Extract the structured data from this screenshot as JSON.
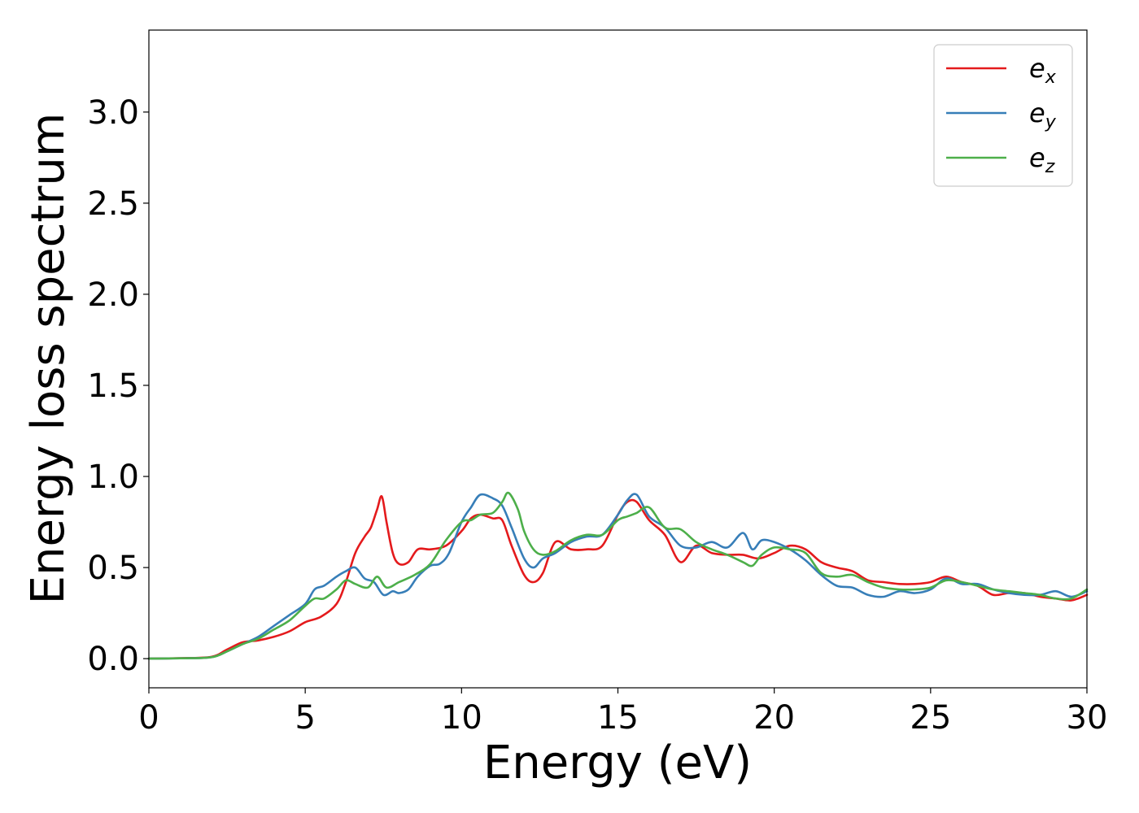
{
  "chart_data": {
    "type": "line",
    "xlabel": "Energy (eV)",
    "ylabel": "Energy loss spectrum",
    "xlim": [
      0,
      30
    ],
    "ylim": [
      -0.16,
      3.45
    ],
    "xticks": [
      0,
      5,
      10,
      15,
      20,
      25,
      30
    ],
    "xtick_labels": [
      "0",
      "5",
      "10",
      "15",
      "20",
      "25",
      "30"
    ],
    "yticks": [
      0.0,
      0.5,
      1.0,
      1.5,
      2.0,
      2.5,
      3.0
    ],
    "ytick_labels": [
      "0.0",
      "0.5",
      "1.0",
      "1.5",
      "2.0",
      "2.5",
      "3.0"
    ],
    "grid": false,
    "legend_position": "top-right",
    "series": [
      {
        "name": "e_x",
        "legend_base": "e",
        "legend_sub": "x",
        "color": "#e41a1c",
        "x": [
          0,
          1,
          2,
          2.5,
          3,
          3.5,
          4,
          4.5,
          5,
          5.5,
          6,
          6.3,
          6.6,
          6.9,
          7.1,
          7.3,
          7.45,
          7.6,
          7.8,
          8,
          8.3,
          8.6,
          9,
          9.5,
          10,
          10.3,
          10.6,
          11,
          11.3,
          11.6,
          12,
          12.3,
          12.6,
          13,
          13.5,
          14,
          14.5,
          15,
          15.3,
          15.6,
          16,
          16.5,
          17,
          17.5,
          18,
          18.5,
          19,
          19.5,
          20,
          20.5,
          21,
          21.5,
          22,
          22.5,
          23,
          23.5,
          24,
          24.5,
          25,
          25.5,
          26,
          26.5,
          27,
          27.5,
          28,
          28.5,
          29,
          29.5,
          30
        ],
        "y": [
          0,
          0.003,
          0.01,
          0.05,
          0.09,
          0.1,
          0.12,
          0.15,
          0.2,
          0.23,
          0.3,
          0.42,
          0.58,
          0.67,
          0.72,
          0.82,
          0.89,
          0.75,
          0.58,
          0.52,
          0.53,
          0.6,
          0.6,
          0.62,
          0.7,
          0.77,
          0.79,
          0.77,
          0.76,
          0.62,
          0.46,
          0.42,
          0.47,
          0.64,
          0.6,
          0.6,
          0.62,
          0.79,
          0.86,
          0.86,
          0.76,
          0.68,
          0.53,
          0.62,
          0.58,
          0.57,
          0.57,
          0.55,
          0.58,
          0.62,
          0.6,
          0.53,
          0.5,
          0.48,
          0.43,
          0.42,
          0.41,
          0.41,
          0.42,
          0.45,
          0.42,
          0.4,
          0.35,
          0.36,
          0.36,
          0.34,
          0.33,
          0.32,
          0.35
        ]
      },
      {
        "name": "e_y",
        "legend_base": "e",
        "legend_sub": "y",
        "color": "#377eb8",
        "x": [
          0,
          1,
          2,
          2.5,
          3,
          3.5,
          4,
          4.5,
          5,
          5.3,
          5.6,
          6,
          6.3,
          6.6,
          6.9,
          7.2,
          7.5,
          7.8,
          8,
          8.3,
          8.6,
          9,
          9.3,
          9.6,
          10,
          10.3,
          10.6,
          11,
          11.3,
          11.6,
          12,
          12.3,
          12.6,
          13,
          13.5,
          14,
          14.5,
          15,
          15.3,
          15.6,
          16,
          16.5,
          17,
          17.5,
          18,
          18.5,
          19,
          19.3,
          19.6,
          20,
          20.5,
          21,
          21.5,
          22,
          22.5,
          23,
          23.5,
          24,
          24.5,
          25,
          25.5,
          26,
          26.5,
          27,
          27.5,
          28,
          28.5,
          29,
          29.5,
          30
        ],
        "y": [
          0,
          0.002,
          0.008,
          0.04,
          0.08,
          0.12,
          0.18,
          0.24,
          0.3,
          0.38,
          0.4,
          0.45,
          0.48,
          0.5,
          0.44,
          0.42,
          0.35,
          0.37,
          0.36,
          0.38,
          0.45,
          0.51,
          0.52,
          0.58,
          0.75,
          0.83,
          0.9,
          0.88,
          0.84,
          0.72,
          0.55,
          0.5,
          0.55,
          0.58,
          0.64,
          0.67,
          0.68,
          0.79,
          0.87,
          0.9,
          0.78,
          0.72,
          0.62,
          0.61,
          0.64,
          0.61,
          0.69,
          0.6,
          0.65,
          0.64,
          0.6,
          0.54,
          0.46,
          0.4,
          0.39,
          0.35,
          0.34,
          0.37,
          0.36,
          0.38,
          0.44,
          0.41,
          0.41,
          0.38,
          0.36,
          0.35,
          0.35,
          0.37,
          0.34,
          0.37
        ]
      },
      {
        "name": "e_z",
        "legend_base": "e",
        "legend_sub": "z",
        "color": "#4daf4a",
        "x": [
          0,
          1,
          2,
          2.5,
          3,
          3.5,
          4,
          4.5,
          5,
          5.3,
          5.6,
          6,
          6.3,
          6.6,
          7,
          7.3,
          7.6,
          8,
          8.5,
          9,
          9.5,
          10,
          10.3,
          10.6,
          11,
          11.3,
          11.5,
          11.8,
          12,
          12.3,
          12.6,
          13,
          13.5,
          14,
          14.5,
          15,
          15.3,
          15.6,
          16,
          16.5,
          17,
          17.5,
          18,
          18.5,
          19,
          19.3,
          19.6,
          20,
          20.5,
          21,
          21.5,
          22,
          22.5,
          23,
          23.5,
          24,
          24.5,
          25,
          25.5,
          26,
          26.5,
          27,
          27.5,
          28,
          28.5,
          29,
          29.5,
          30
        ],
        "y": [
          0,
          0.002,
          0.008,
          0.04,
          0.08,
          0.11,
          0.16,
          0.21,
          0.29,
          0.33,
          0.33,
          0.38,
          0.43,
          0.41,
          0.39,
          0.45,
          0.39,
          0.42,
          0.46,
          0.52,
          0.65,
          0.75,
          0.76,
          0.79,
          0.8,
          0.86,
          0.91,
          0.82,
          0.7,
          0.6,
          0.57,
          0.59,
          0.65,
          0.68,
          0.68,
          0.76,
          0.78,
          0.8,
          0.83,
          0.72,
          0.71,
          0.64,
          0.6,
          0.57,
          0.53,
          0.51,
          0.57,
          0.61,
          0.6,
          0.58,
          0.47,
          0.45,
          0.46,
          0.42,
          0.39,
          0.38,
          0.38,
          0.39,
          0.43,
          0.42,
          0.4,
          0.38,
          0.37,
          0.36,
          0.35,
          0.33,
          0.33,
          0.38
        ]
      }
    ]
  }
}
